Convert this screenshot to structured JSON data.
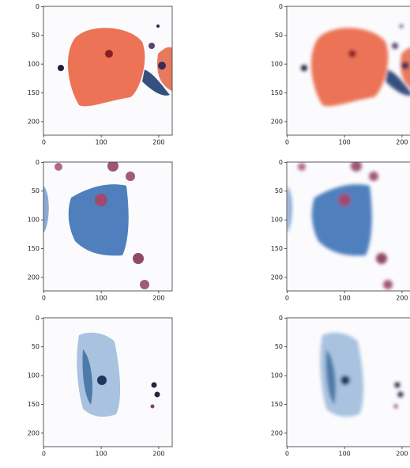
{
  "chart_data": [
    {
      "type": "image",
      "xlim": [
        -0.5,
        223.5
      ],
      "ylim": [
        223.5,
        -0.5
      ],
      "xticks": [
        0,
        100,
        200
      ],
      "yticks": [
        0,
        50,
        100,
        150,
        200
      ]
    },
    {
      "type": "image",
      "xlim": [
        -0.5,
        223.5
      ],
      "ylim": [
        223.5,
        -0.5
      ],
      "xticks": [
        0,
        100,
        200
      ],
      "yticks": [
        0,
        50,
        100,
        150,
        200
      ]
    },
    {
      "type": "image",
      "xlim": [
        -0.5,
        223.5
      ],
      "ylim": [
        223.5,
        -0.5
      ],
      "xticks": [
        0,
        100,
        200
      ],
      "yticks": [
        0,
        50,
        100,
        150,
        200
      ]
    },
    {
      "type": "image",
      "xlim": [
        -0.5,
        223.5
      ],
      "ylim": [
        223.5,
        -0.5
      ],
      "xticks": [
        0,
        100,
        200
      ],
      "yticks": [
        0,
        50,
        100,
        150,
        200
      ]
    },
    {
      "type": "image",
      "xlim": [
        -0.5,
        223.5
      ],
      "ylim": [
        223.5,
        -0.5
      ],
      "xticks": [
        0,
        100,
        200
      ],
      "yticks": [
        0,
        50,
        100,
        150,
        200
      ]
    },
    {
      "type": "image",
      "xlim": [
        -0.5,
        223.5
      ],
      "ylim": [
        223.5,
        -0.5
      ],
      "xticks": [
        0,
        100,
        200
      ],
      "yticks": [
        0,
        50,
        100,
        150,
        200
      ]
    }
  ]
}
